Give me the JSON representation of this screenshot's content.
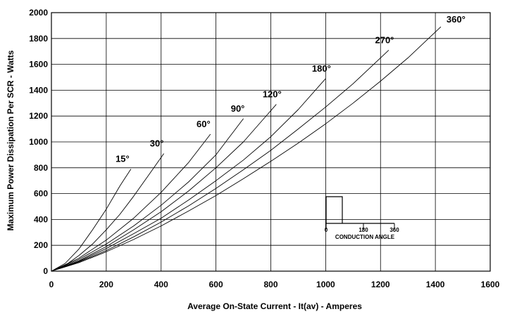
{
  "chart_data": {
    "type": "line",
    "title": "",
    "xlabel": "Average On-State Current - It(av) - Amperes",
    "ylabel": "Maximum Power Dissipation Per SCR - Watts",
    "xlim": [
      0,
      1600
    ],
    "ylim": [
      0,
      2000
    ],
    "x_ticks": [
      "0",
      "200",
      "400",
      "600",
      "800",
      "1000",
      "1200",
      "1400",
      "1600"
    ],
    "y_ticks": [
      "0",
      "200",
      "400",
      "600",
      "800",
      "1000",
      "1200",
      "1400",
      "1600",
      "1800",
      "2000"
    ],
    "grid": true,
    "series": [
      {
        "name": "15°",
        "x": [
          0,
          50,
          100,
          150,
          200,
          250,
          290
        ],
        "y": [
          0,
          60,
          170,
          320,
          480,
          660,
          790
        ]
      },
      {
        "name": "30°",
        "x": [
          0,
          50,
          100,
          150,
          200,
          250,
          300,
          350,
          410
        ],
        "y": [
          0,
          45,
          120,
          210,
          320,
          440,
          580,
          730,
          910
        ]
      },
      {
        "name": "60°",
        "x": [
          0,
          100,
          200,
          300,
          400,
          500,
          580
        ],
        "y": [
          0,
          100,
          240,
          410,
          610,
          840,
          1060
        ]
      },
      {
        "name": "90°",
        "x": [
          0,
          100,
          200,
          300,
          400,
          500,
          600,
          700
        ],
        "y": [
          0,
          90,
          210,
          350,
          510,
          690,
          900,
          1180
        ]
      },
      {
        "name": "120°",
        "x": [
          0,
          100,
          200,
          300,
          400,
          500,
          600,
          700,
          820
        ],
        "y": [
          0,
          80,
          190,
          320,
          460,
          620,
          800,
          1000,
          1290
        ]
      },
      {
        "name": "180°",
        "x": [
          0,
          100,
          200,
          300,
          400,
          500,
          600,
          700,
          800,
          900,
          1000
        ],
        "y": [
          0,
          75,
          175,
          290,
          410,
          550,
          700,
          860,
          1040,
          1250,
          1490
        ]
      },
      {
        "name": "270°",
        "x": [
          0,
          100,
          200,
          300,
          400,
          500,
          600,
          700,
          800,
          900,
          1000,
          1100,
          1230
        ],
        "y": [
          0,
          70,
          160,
          265,
          380,
          505,
          640,
          785,
          935,
          1100,
          1270,
          1450,
          1710
        ]
      },
      {
        "name": "360°",
        "x": [
          0,
          100,
          200,
          300,
          400,
          500,
          600,
          700,
          800,
          900,
          1000,
          1100,
          1200,
          1300,
          1420
        ],
        "y": [
          0,
          65,
          150,
          245,
          350,
          465,
          585,
          715,
          850,
          990,
          1140,
          1300,
          1470,
          1650,
          1890
        ]
      }
    ]
  },
  "inset": {
    "left_tick": "0",
    "mid_tick": "180",
    "right_tick": "360",
    "caption": "CONDUCTION ANGLE"
  },
  "colors": {
    "line": "#000000",
    "grid": "#000000",
    "background": "#ffffff"
  }
}
